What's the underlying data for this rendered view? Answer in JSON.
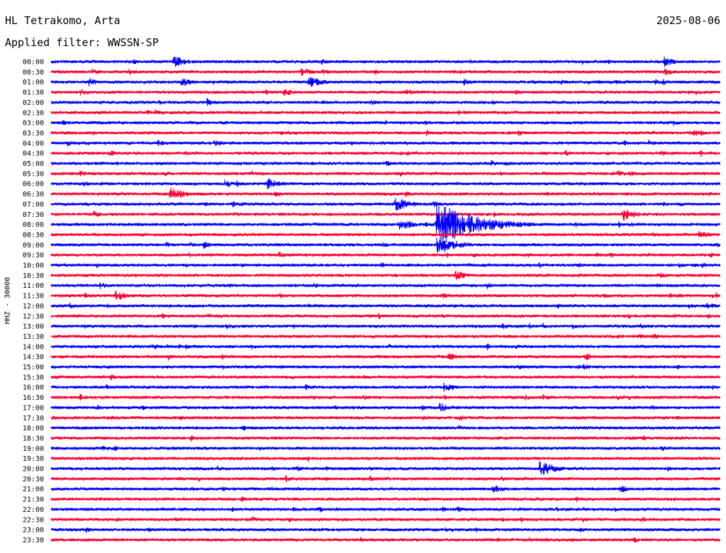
{
  "header": {
    "station": "HL Tetrakomo, Arta",
    "filter_label": "Applied filter: WWSSN-SP",
    "date": "2025-08-06"
  },
  "channel_label": "HHZ - 30000",
  "chart_data": {
    "type": "line",
    "title": "",
    "xlabel": "",
    "ylabel": "HHZ - 30000",
    "row_labels": [
      "00:00",
      "00:30",
      "01:00",
      "01:30",
      "02:00",
      "02:30",
      "03:00",
      "03:30",
      "04:00",
      "04:30",
      "05:00",
      "05:30",
      "06:00",
      "06:30",
      "07:00",
      "07:30",
      "08:00",
      "08:30",
      "09:00",
      "09:30",
      "10:00",
      "10:30",
      "11:00",
      "11:30",
      "12:00",
      "12:30",
      "13:00",
      "13:30",
      "14:00",
      "14:30",
      "15:00",
      "15:30",
      "16:00",
      "16:30",
      "17:00",
      "17:30",
      "18:00",
      "18:30",
      "19:00",
      "19:30",
      "20:00",
      "20:30",
      "21:00",
      "21:30",
      "22:00",
      "22:30",
      "23:00",
      "23:30"
    ],
    "trace_colors": [
      "#0000ff",
      "#ff0033"
    ],
    "row_minutes": 30,
    "events": [
      {
        "row": 0,
        "minute": 5.5,
        "amp": 1.5
      },
      {
        "row": 0,
        "minute": 27.5,
        "amp": 1.3
      },
      {
        "row": 1,
        "minute": 1.8,
        "amp": 0.9
      },
      {
        "row": 1,
        "minute": 3.5,
        "amp": 0.8
      },
      {
        "row": 1,
        "minute": 11.2,
        "amp": 1.3
      },
      {
        "row": 1,
        "minute": 14.5,
        "amp": 0.7
      },
      {
        "row": 1,
        "minute": 27.5,
        "amp": 1.1
      },
      {
        "row": 2,
        "minute": 1.7,
        "amp": 1.1
      },
      {
        "row": 2,
        "minute": 5.8,
        "amp": 1.2
      },
      {
        "row": 2,
        "minute": 11.5,
        "amp": 1.6
      },
      {
        "row": 2,
        "minute": 18.5,
        "amp": 0.9
      },
      {
        "row": 2,
        "minute": 25.2,
        "amp": 0.8
      },
      {
        "row": 3,
        "minute": 1.3,
        "amp": 1.0
      },
      {
        "row": 3,
        "minute": 10.4,
        "amp": 1.2
      },
      {
        "row": 3,
        "minute": 15.9,
        "amp": 0.9
      },
      {
        "row": 4,
        "minute": 7.0,
        "amp": 1.1
      },
      {
        "row": 4,
        "minute": 14.3,
        "amp": 0.8
      },
      {
        "row": 4,
        "minute": 24.6,
        "amp": 0.7
      },
      {
        "row": 5,
        "minute": 28.1,
        "amp": 0.5
      },
      {
        "row": 6,
        "minute": 27.9,
        "amp": 0.8
      },
      {
        "row": 8,
        "minute": 7.3,
        "amp": 0.9
      },
      {
        "row": 8,
        "minute": 26.8,
        "amp": 0.8
      },
      {
        "row": 10,
        "minute": 8.5,
        "amp": 0.7
      },
      {
        "row": 10,
        "minute": 15.0,
        "amp": 0.8
      },
      {
        "row": 11,
        "minute": 1.3,
        "amp": 0.8
      },
      {
        "row": 11,
        "minute": 15.5,
        "amp": 0.6
      },
      {
        "row": 11,
        "minute": 22.0,
        "amp": 0.7
      },
      {
        "row": 12,
        "minute": 7.8,
        "amp": 1.0
      },
      {
        "row": 12,
        "minute": 9.7,
        "amp": 1.5
      },
      {
        "row": 13,
        "minute": 5.3,
        "amp": 1.8
      },
      {
        "row": 14,
        "minute": 8.4,
        "amp": 0.8
      },
      {
        "row": 14,
        "minute": 15.4,
        "amp": 1.9
      },
      {
        "row": 15,
        "minute": 1.9,
        "amp": 0.9
      },
      {
        "row": 15,
        "minute": 25.6,
        "amp": 1.6
      },
      {
        "row": 16,
        "minute": 15.6,
        "amp": 1.6
      },
      {
        "row": 16,
        "minute": 17.3,
        "amp": 5.5
      },
      {
        "row": 17,
        "minute": 29.0,
        "amp": 1.2
      },
      {
        "row": 18,
        "minute": 6.8,
        "amp": 1.0
      },
      {
        "row": 18,
        "minute": 17.3,
        "amp": 2.5
      },
      {
        "row": 19,
        "minute": 10.2,
        "amp": 0.9
      },
      {
        "row": 19,
        "minute": 18.9,
        "amp": 0.8
      },
      {
        "row": 19,
        "minute": 26.8,
        "amp": 0.6
      },
      {
        "row": 20,
        "minute": 6.0,
        "amp": 0.6
      },
      {
        "row": 21,
        "minute": 18.1,
        "amp": 1.3
      },
      {
        "row": 22,
        "minute": 2.2,
        "amp": 0.9
      },
      {
        "row": 22,
        "minute": 11.8,
        "amp": 0.7
      },
      {
        "row": 23,
        "minute": 2.9,
        "amp": 1.3
      },
      {
        "row": 23,
        "minute": 24.8,
        "amp": 0.7
      },
      {
        "row": 26,
        "minute": 20.2,
        "amp": 0.8
      },
      {
        "row": 26,
        "minute": 29.5,
        "amp": 0.6
      },
      {
        "row": 29,
        "minute": 17.8,
        "amp": 1.1
      },
      {
        "row": 29,
        "minute": 24.0,
        "amp": 1.0
      },
      {
        "row": 31,
        "minute": 14.0,
        "amp": 0.6
      },
      {
        "row": 32,
        "minute": 17.6,
        "amp": 1.2
      },
      {
        "row": 32,
        "minute": 11.4,
        "amp": 0.8
      },
      {
        "row": 33,
        "minute": 14.0,
        "amp": 0.8
      },
      {
        "row": 34,
        "minute": 17.4,
        "amp": 1.3
      },
      {
        "row": 35,
        "minute": 2.7,
        "amp": 0.6
      },
      {
        "row": 37,
        "minute": 26.5,
        "amp": 0.7
      },
      {
        "row": 40,
        "minute": 21.9,
        "amp": 2.0
      },
      {
        "row": 42,
        "minute": 19.8,
        "amp": 1.2
      },
      {
        "row": 44,
        "minute": 18.2,
        "amp": 0.8
      },
      {
        "row": 44,
        "minute": 21.0,
        "amp": 0.6
      },
      {
        "row": 45,
        "minute": 20.2,
        "amp": 0.7
      },
      {
        "row": 47,
        "minute": 20.0,
        "amp": 0.6
      }
    ]
  }
}
